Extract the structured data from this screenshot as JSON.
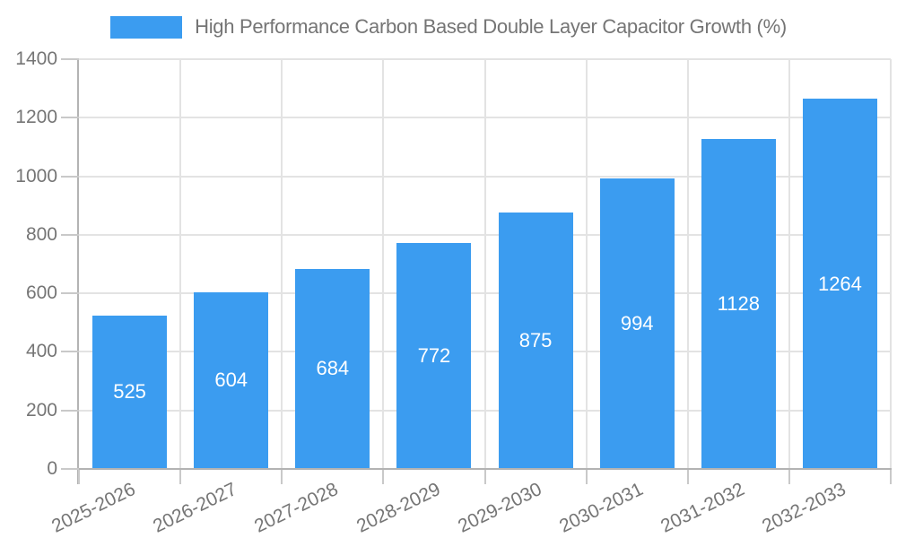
{
  "colors": {
    "bar": "#3B9CF0",
    "grid": "#E3E3E3",
    "axis": "#B3B3B3",
    "tick": "#C9C9C9",
    "text": "#757575",
    "value_label": "#FFFFFF"
  },
  "chart_data": {
    "type": "bar",
    "legend": "High Performance Carbon Based Double Layer Capacitor Growth (%)",
    "title": "",
    "xlabel": "",
    "ylabel": "",
    "categories": [
      "2025-2026",
      "2026-2027",
      "2027-2028",
      "2028-2029",
      "2029-2030",
      "2030-2031",
      "2031-2032",
      "2032-2033"
    ],
    "values": [
      525,
      604,
      684,
      772,
      875,
      994,
      1128,
      1264
    ],
    "ylim": [
      0,
      1400
    ],
    "yticks": [
      0,
      200,
      400,
      600,
      800,
      1000,
      1200,
      1400
    ],
    "grid": true,
    "legend_position": "top",
    "value_labels": "inside-center",
    "x_tick_rotation": -26
  }
}
